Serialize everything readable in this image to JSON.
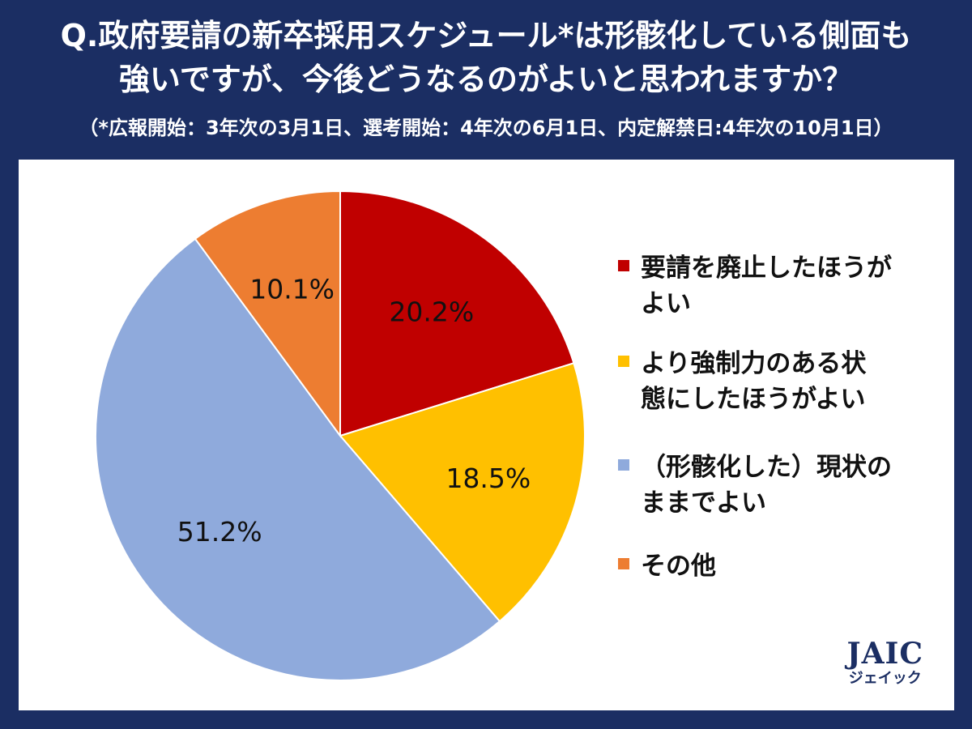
{
  "header": {
    "title_line1": "Q.政府要請の新卒採用スケジュール*は形骸化している側面も",
    "title_line2": "強いですが、今後どうなるのがよいと思われますか？",
    "note": "（*広報開始：3年次の3月1日、選考開始：4年次の6月1日、内定解禁日:4年次の10月1日）"
  },
  "logo": {
    "mark": "JAIC",
    "sub": "ジェイック"
  },
  "chart_data": {
    "type": "pie",
    "title": "",
    "start": "12 o'clock, clockwise",
    "slices": [
      {
        "label": "要請を廃止したほうがよい",
        "legend_lines": [
          "要請を廃止したほうが",
          "よい"
        ],
        "value": 20.2,
        "value_label": "20.2%",
        "color": "#c00000"
      },
      {
        "label": "より強制力のある状態にしたほうがよい",
        "legend_lines": [
          "より強制力のある状",
          "態にしたほうがよい"
        ],
        "value": 18.5,
        "value_label": "18.5%",
        "color": "#ffc000"
      },
      {
        "label": "（形骸化した）現状のままでよい",
        "legend_lines": [
          "（形骸化した）現状の",
          "ままでよい"
        ],
        "value": 51.2,
        "value_label": "51.2%",
        "color": "#8faadc"
      },
      {
        "label": "その他",
        "legend_lines": [
          "その他"
        ],
        "value": 10.1,
        "value_label": "10.1%",
        "color": "#ed7d31"
      }
    ],
    "legend_position": "right"
  }
}
